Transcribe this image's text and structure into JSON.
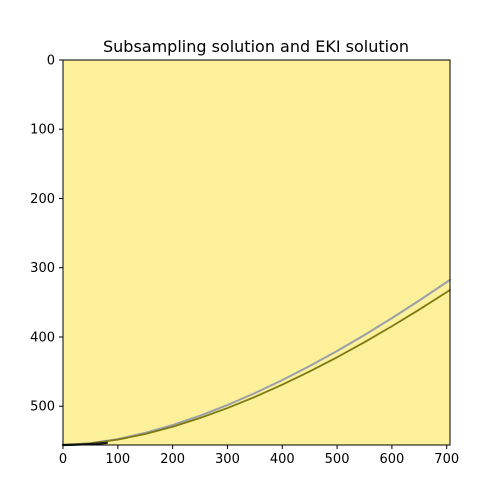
{
  "chart_data": {
    "type": "line",
    "title": "Subsampling solution and EKI solution",
    "xlabel": "",
    "ylabel": "",
    "xlim": [
      0,
      706
    ],
    "ylim": [
      556,
      0
    ],
    "y_inverted": true,
    "grid": false,
    "x_ticks": [
      0,
      100,
      200,
      300,
      400,
      500,
      600,
      700
    ],
    "x_tick_labels": [
      "0",
      "100",
      "200",
      "300",
      "400",
      "500",
      "600",
      "700"
    ],
    "y_ticks": [
      0,
      100,
      200,
      300,
      400,
      500
    ],
    "y_tick_labels": [
      "0",
      "100",
      "200",
      "300",
      "400",
      "500"
    ],
    "colors": {
      "background": "#fdf09a",
      "subsampling": "#9aa0aa",
      "eki": "#7d7a14",
      "baseline": "#1c1c1c"
    },
    "series": [
      {
        "key": "subsampling",
        "x": [
          0,
          50,
          100,
          150,
          200,
          250,
          300,
          350,
          400,
          450,
          500,
          550,
          600,
          650,
          700,
          706
        ],
        "y": [
          556,
          553.5,
          547.5,
          538.5,
          527.2,
          513.7,
          498.3,
          481.1,
          462.3,
          441.9,
          420.2,
          397.1,
          372.8,
          347.3,
          320.8,
          317.5
        ]
      },
      {
        "key": "eki",
        "x": [
          0,
          50,
          100,
          150,
          200,
          250,
          300,
          350,
          400,
          450,
          500,
          550,
          600,
          650,
          700,
          706
        ],
        "y": [
          556,
          553.7,
          548.3,
          540.1,
          529.6,
          517.0,
          502.7,
          486.6,
          468.9,
          449.8,
          429.3,
          407.5,
          384.5,
          360.4,
          335.2,
          332.1
        ]
      },
      {
        "key": "baseline",
        "x": [
          0,
          20,
          40,
          60,
          80
        ],
        "y": [
          556,
          555.6,
          555.0,
          554.2,
          552.9
        ]
      }
    ]
  }
}
